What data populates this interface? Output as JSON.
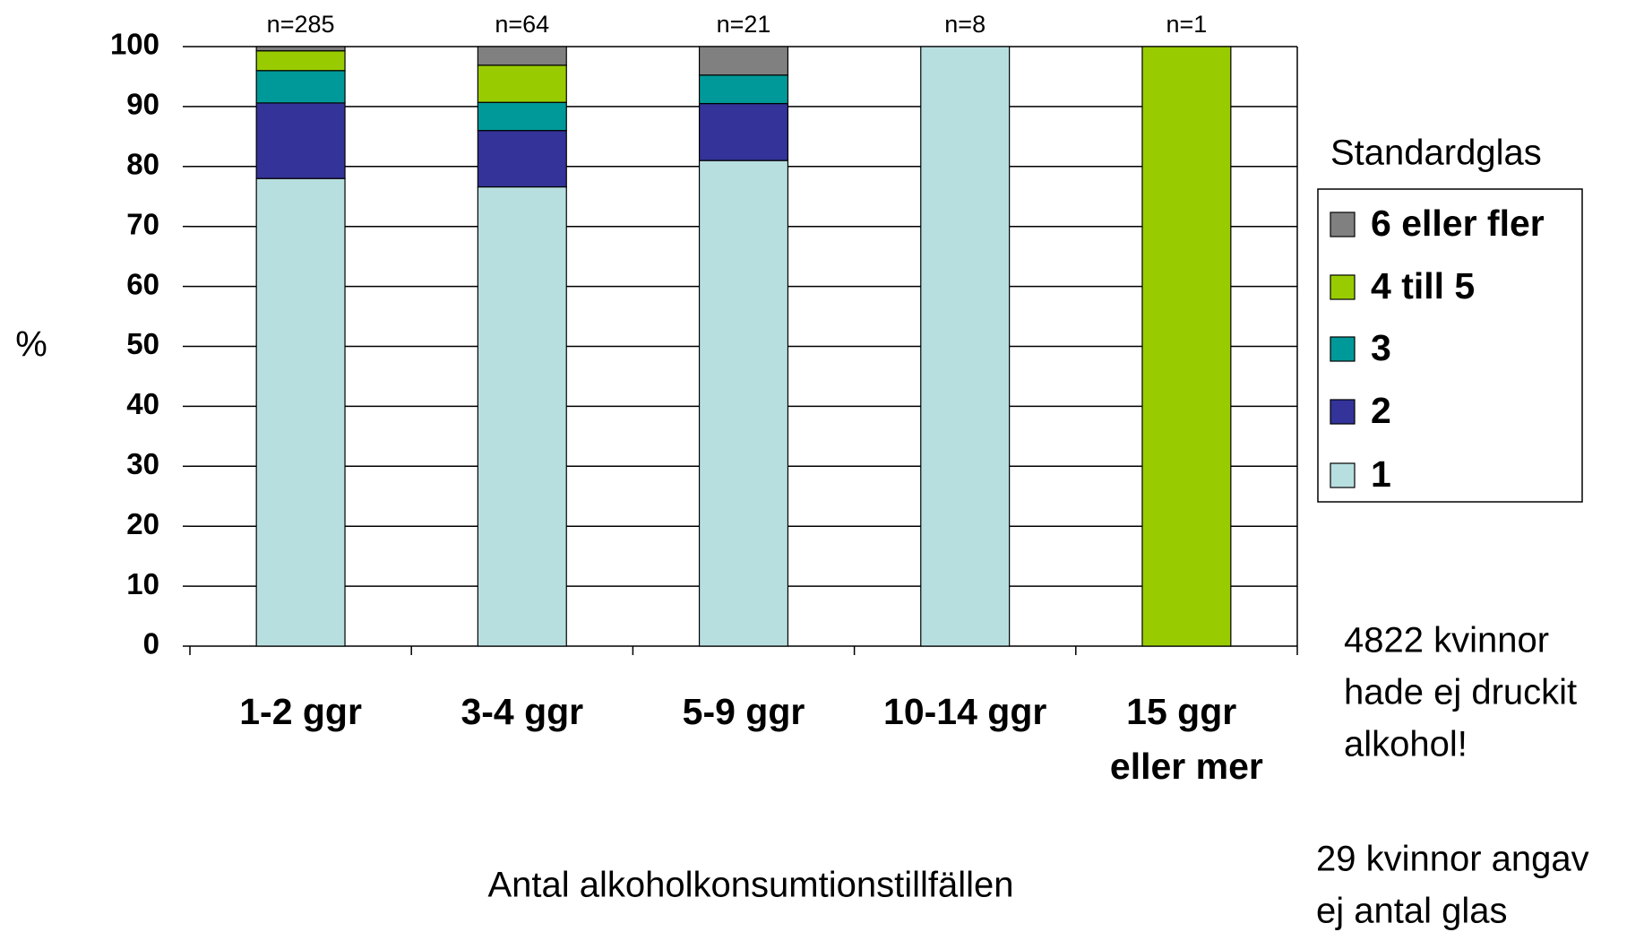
{
  "chart_data": {
    "type": "stacked_bar",
    "categories": [
      "1-2 ggr",
      "3-4 ggr",
      "5-9 ggr",
      "10-14 ggr",
      "15 ggr eller mer"
    ],
    "annotations": [
      "n=285",
      "n=64",
      "n=21",
      "n=8",
      "n=1"
    ],
    "y_label": "%",
    "x_label": "Antal alkoholkonsumtionstillfällen",
    "legend_title": "Standardglas",
    "series": [
      {
        "name": "1",
        "color": "#b8dfe0",
        "values": [
          78,
          76.6,
          81,
          100,
          0
        ]
      },
      {
        "name": "2",
        "color": "#333399",
        "values": [
          12.6,
          9.4,
          9.5,
          0,
          0
        ]
      },
      {
        "name": "3",
        "color": "#009999",
        "values": [
          5.4,
          4.7,
          4.75,
          0,
          0
        ]
      },
      {
        "name": "4 till 5",
        "color": "#99cc00",
        "values": [
          3.3,
          6.2,
          0,
          0,
          100
        ]
      },
      {
        "name": "6 eller fler",
        "color": "#808080",
        "values": [
          0.7,
          3.1,
          4.75,
          0,
          0
        ]
      }
    ],
    "ylim": [
      0,
      100
    ],
    "yticks": [
      0,
      10,
      20,
      30,
      40,
      50,
      60,
      70,
      80,
      90,
      100
    ],
    "grid": true,
    "notes": [
      [
        "4822 kvinnor",
        "hade ej druckit",
        "alkohol!"
      ],
      [
        "29 kvinnor angav",
        "ej antal glas"
      ]
    ]
  }
}
